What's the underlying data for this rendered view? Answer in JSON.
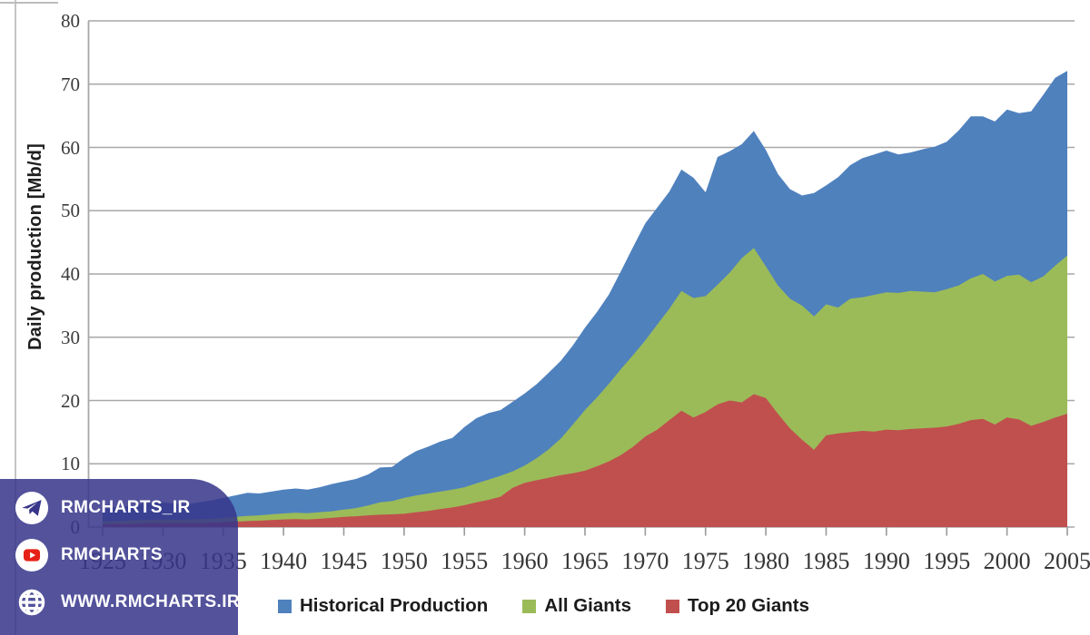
{
  "chart_data": {
    "type": "area",
    "title": "",
    "xlabel": "",
    "ylabel": "Daily production  [Mb/d]",
    "ylim": [
      0,
      80
    ],
    "grid": true,
    "legend_position": "bottom",
    "y_ticks": [
      0,
      10,
      20,
      30,
      40,
      50,
      60,
      70,
      80
    ],
    "x_ticks": [
      1925,
      1930,
      1935,
      1940,
      1945,
      1950,
      1955,
      1960,
      1965,
      1970,
      1975,
      1980,
      1985,
      1990,
      1995,
      2000,
      2005
    ],
    "x": [
      1925,
      1926,
      1927,
      1928,
      1929,
      1930,
      1931,
      1932,
      1933,
      1934,
      1935,
      1936,
      1937,
      1938,
      1939,
      1940,
      1941,
      1942,
      1943,
      1944,
      1945,
      1946,
      1947,
      1948,
      1949,
      1950,
      1951,
      1952,
      1953,
      1954,
      1955,
      1956,
      1957,
      1958,
      1959,
      1960,
      1961,
      1962,
      1963,
      1964,
      1965,
      1966,
      1967,
      1968,
      1969,
      1970,
      1971,
      1972,
      1973,
      1974,
      1975,
      1976,
      1977,
      1978,
      1979,
      1980,
      1981,
      1982,
      1983,
      1984,
      1985,
      1986,
      1987,
      1988,
      1989,
      1990,
      1991,
      1992,
      1993,
      1994,
      1995,
      1996,
      1997,
      1998,
      1999,
      2000,
      2001,
      2002,
      2003,
      2004,
      2005
    ],
    "series": [
      {
        "name": "Historical Production",
        "color": "#4F81BD",
        "values": [
          2.9,
          3.1,
          3.3,
          3.6,
          3.8,
          3.9,
          3.7,
          3.6,
          3.9,
          4.2,
          4.6,
          5.0,
          5.4,
          5.3,
          5.6,
          5.9,
          6.1,
          5.9,
          6.3,
          6.8,
          7.2,
          7.6,
          8.3,
          9.4,
          9.5,
          10.9,
          12.0,
          12.7,
          13.5,
          14.1,
          15.8,
          17.2,
          18.0,
          18.5,
          19.8,
          21.1,
          22.6,
          24.4,
          26.3,
          28.7,
          31.5,
          34.0,
          36.8,
          40.5,
          44.3,
          48.0,
          50.5,
          53.0,
          56.5,
          55.2,
          52.9,
          58.5,
          59.4,
          60.5,
          62.6,
          59.6,
          55.8,
          53.4,
          52.4,
          52.8,
          54.0,
          55.3,
          57.2,
          58.3,
          58.9,
          59.5,
          58.9,
          59.2,
          59.7,
          60.1,
          60.9,
          62.7,
          64.9,
          64.9,
          64.1,
          66.0,
          65.4,
          65.7,
          68.3,
          71.0,
          72.1
        ]
      },
      {
        "name": "All Giants",
        "color": "#9BBB59",
        "values": [
          0.9,
          0.95,
          1.0,
          1.1,
          1.15,
          1.2,
          1.15,
          1.2,
          1.25,
          1.3,
          1.45,
          1.6,
          1.75,
          1.85,
          2.0,
          2.15,
          2.25,
          2.2,
          2.35,
          2.5,
          2.75,
          3.0,
          3.4,
          3.9,
          4.1,
          4.6,
          5.0,
          5.3,
          5.6,
          5.9,
          6.3,
          6.9,
          7.5,
          8.1,
          8.8,
          9.7,
          10.9,
          12.3,
          14.0,
          16.2,
          18.5,
          20.5,
          22.7,
          25.0,
          27.2,
          29.5,
          32.0,
          34.5,
          37.3,
          36.2,
          36.5,
          38.3,
          40.2,
          42.5,
          44.1,
          41.2,
          38.2,
          36.1,
          35.0,
          33.3,
          35.2,
          34.7,
          36.1,
          36.3,
          36.7,
          37.1,
          37.0,
          37.3,
          37.2,
          37.1,
          37.6,
          38.2,
          39.3,
          40.0,
          38.8,
          39.7,
          39.9,
          38.7,
          39.6,
          41.3,
          42.9
        ]
      },
      {
        "name": "Top 20 Giants",
        "color": "#C0504D",
        "values": [
          0.45,
          0.5,
          0.5,
          0.55,
          0.6,
          0.6,
          0.6,
          0.6,
          0.65,
          0.7,
          0.75,
          0.85,
          0.95,
          1.0,
          1.1,
          1.2,
          1.25,
          1.2,
          1.3,
          1.45,
          1.6,
          1.7,
          1.85,
          1.95,
          2.0,
          2.1,
          2.35,
          2.55,
          2.85,
          3.1,
          3.45,
          3.9,
          4.3,
          4.8,
          6.2,
          7.0,
          7.4,
          7.8,
          8.2,
          8.5,
          8.9,
          9.6,
          10.4,
          11.4,
          12.7,
          14.3,
          15.4,
          16.9,
          18.4,
          17.3,
          18.2,
          19.4,
          20.0,
          19.7,
          21.0,
          20.4,
          17.9,
          15.6,
          13.8,
          12.2,
          14.5,
          14.8,
          15.0,
          15.2,
          15.1,
          15.4,
          15.3,
          15.5,
          15.6,
          15.7,
          15.9,
          16.3,
          16.9,
          17.1,
          16.2,
          17.3,
          17.0,
          16.0,
          16.6,
          17.3,
          17.9
        ]
      }
    ],
    "colors": {
      "gridline": "#a9a7a7",
      "axis_line": "#a9a7a7",
      "tick_mark": "#9b9999",
      "tick_text": "#3b3b3b"
    }
  },
  "watermark": {
    "background_color": "#37368A",
    "items": [
      {
        "platform": "telegram",
        "label": "RMCHARTS_IR"
      },
      {
        "platform": "youtube",
        "label": "RMCHARTS"
      },
      {
        "platform": "website",
        "label": "WWW.RMCHARTS.IR"
      }
    ]
  }
}
